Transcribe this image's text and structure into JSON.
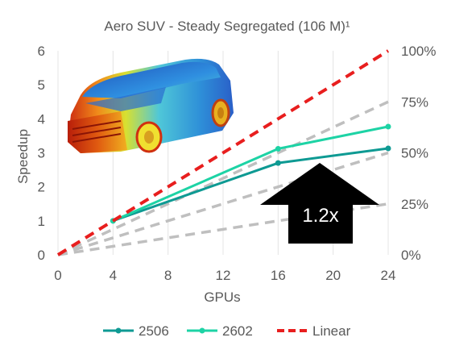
{
  "chart_data": {
    "type": "line",
    "title": "Aero SUV - Steady Segregated (106 M)¹",
    "xlabel": "GPUs",
    "ylabel": "Speedup",
    "xlim": [
      0,
      24
    ],
    "ylim": [
      0,
      6
    ],
    "x_ticks": [
      "0",
      "4",
      "8",
      "12",
      "16",
      "20",
      "24"
    ],
    "y_ticks": [
      "0",
      "1",
      "2",
      "3",
      "4",
      "5",
      "6"
    ],
    "y2_ticks": [
      "0%",
      "25%",
      "50%",
      "75%",
      "100%"
    ],
    "legend_position": "bottom",
    "grid": "vertical",
    "series": [
      {
        "name": "2506",
        "color": "#0e9a93",
        "marker": true,
        "x": [
          4,
          16,
          24
        ],
        "y": [
          1.0,
          2.7,
          3.13
        ]
      },
      {
        "name": "2602",
        "color": "#1dd3a5",
        "marker": true,
        "x": [
          4,
          16,
          24
        ],
        "y": [
          1.0,
          3.12,
          3.77
        ]
      },
      {
        "name": "Linear",
        "color": "#e81e1e",
        "dashed": true,
        "marker": false,
        "x": [
          0,
          24
        ],
        "y": [
          0,
          6
        ]
      }
    ],
    "efficiency_guides": {
      "color": "#bfbfbf",
      "lines": [
        {
          "x": [
            0,
            24
          ],
          "y": [
            0,
            4.5
          ]
        },
        {
          "x": [
            0,
            24
          ],
          "y": [
            0,
            3.0
          ]
        },
        {
          "x": [
            0,
            24
          ],
          "y": [
            0,
            1.5
          ]
        }
      ]
    },
    "annotation": {
      "text": "1.2x",
      "arrow": "up"
    }
  },
  "image": {
    "description": "car-model-icon"
  }
}
